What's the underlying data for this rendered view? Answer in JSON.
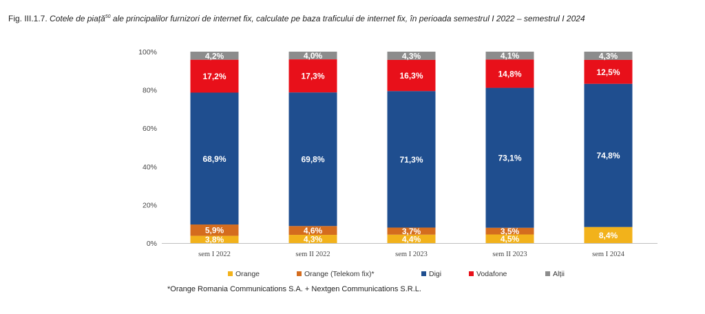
{
  "figure": {
    "caption_prefix": "Fig. III.1.7.",
    "caption_main": "Cotele de piață",
    "caption_sup": "50",
    "caption_rest": " ale principalilor furnizori de internet fix, calculate pe baza traficului de internet fix, în perioada semestrul I 2022 – semestrul I 2024",
    "footnote": "*Orange Romania Communications S.A. + Nextgen Communications S.R.L."
  },
  "chart_data": {
    "type": "bar",
    "stacked": true,
    "percent": true,
    "categories": [
      "sem I 2022",
      "sem II 2022",
      "sem I 2023",
      "sem II 2023",
      "sem I 2024"
    ],
    "series": [
      {
        "name": "Orange",
        "color": "#F2B21B",
        "values": [
          3.8,
          4.3,
          4.4,
          4.5,
          8.4
        ],
        "labels": [
          "3,8%",
          "4,3%",
          "4,4%",
          "4,5%",
          "8,4%"
        ]
      },
      {
        "name": "Orange (Telekom fix)*",
        "color": "#D46C1E",
        "values": [
          5.9,
          4.6,
          3.7,
          3.5,
          0
        ],
        "labels": [
          "5,9%",
          "4,6%",
          "3,7%",
          "3,5%",
          ""
        ]
      },
      {
        "name": "Digi",
        "color": "#1F4E8F",
        "values": [
          68.9,
          69.8,
          71.3,
          73.1,
          74.8
        ],
        "labels": [
          "68,9%",
          "69,8%",
          "71,3%",
          "73,1%",
          "74,8%"
        ]
      },
      {
        "name": "Vodafone",
        "color": "#E8101A",
        "values": [
          17.2,
          17.3,
          16.3,
          14.8,
          12.5
        ],
        "labels": [
          "17,2%",
          "17,3%",
          "16,3%",
          "14,8%",
          "12,5%"
        ]
      },
      {
        "name": "Alții",
        "color": "#8C8C8C",
        "values": [
          4.2,
          4.0,
          4.3,
          4.1,
          4.3
        ],
        "labels": [
          "4,2%",
          "4,0%",
          "4,3%",
          "4,1%",
          "4,3%"
        ]
      }
    ],
    "yticks": [
      "0%",
      "20%",
      "40%",
      "60%",
      "80%",
      "100%"
    ],
    "ylim": [
      0,
      100
    ],
    "grid": false,
    "legend_position": "bottom"
  }
}
